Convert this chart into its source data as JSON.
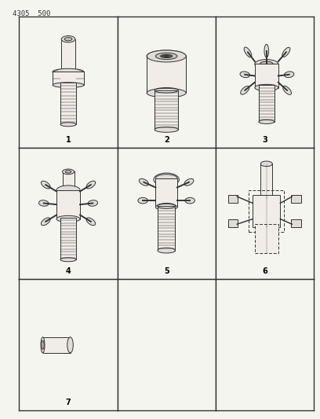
{
  "title": "4305  500",
  "bg_color": "#f5f5f0",
  "line_color": "#333333",
  "fill_light": "#f0ede8",
  "fill_mid": "#e0ddd8",
  "fill_dark": "#c8c5c0",
  "fill_thread": "#b8b5b0",
  "label_fontsize": 7,
  "grid_rows": 3,
  "grid_cols": 3,
  "labels": [
    "1",
    "2",
    "3",
    "4",
    "5",
    "6",
    "7",
    "",
    ""
  ],
  "fig_width": 4.08,
  "fig_height": 5.33
}
